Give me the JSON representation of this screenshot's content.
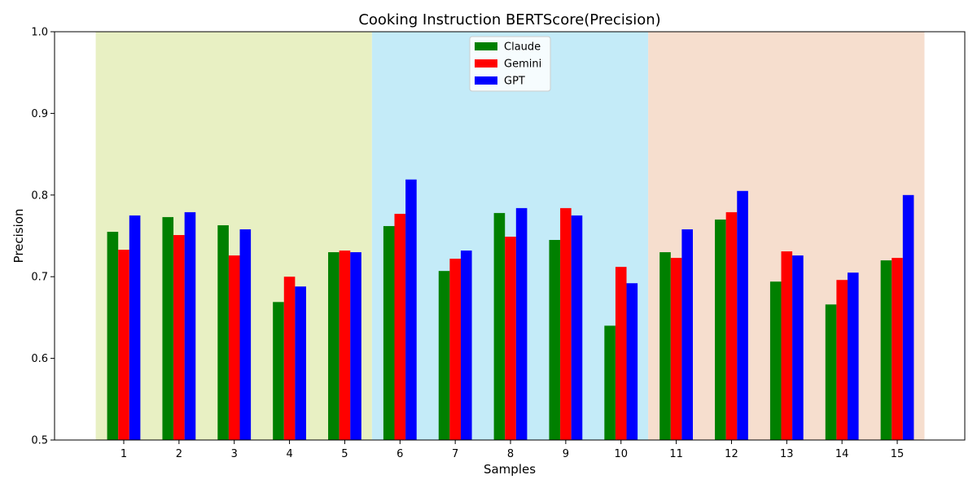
{
  "chart_data": {
    "type": "bar",
    "title": "Cooking Instruction BERTScore(Precision)",
    "xlabel": "Samples",
    "ylabel": "Precision",
    "ylim": [
      0.5,
      1.0
    ],
    "yticks": [
      "0.5",
      "0.6",
      "0.7",
      "0.8",
      "0.9",
      "1.0"
    ],
    "categories": [
      "1",
      "2",
      "3",
      "4",
      "5",
      "6",
      "7",
      "8",
      "9",
      "10",
      "11",
      "12",
      "13",
      "14",
      "15"
    ],
    "series": [
      {
        "name": "Claude",
        "color": "#008000",
        "values": [
          0.755,
          0.773,
          0.763,
          0.669,
          0.73,
          0.762,
          0.707,
          0.778,
          0.745,
          0.64,
          0.73,
          0.77,
          0.694,
          0.666,
          0.72
        ]
      },
      {
        "name": "Gemini",
        "color": "#ff0000",
        "values": [
          0.733,
          0.751,
          0.726,
          0.7,
          0.732,
          0.777,
          0.722,
          0.749,
          0.784,
          0.712,
          0.723,
          0.779,
          0.731,
          0.696,
          0.723
        ]
      },
      {
        "name": "GPT",
        "color": "#0000ff",
        "values": [
          0.775,
          0.779,
          0.758,
          0.688,
          0.73,
          0.819,
          0.732,
          0.784,
          0.775,
          0.692,
          0.758,
          0.805,
          0.726,
          0.705,
          0.8
        ]
      }
    ],
    "background_bands": [
      {
        "from_category": "1",
        "to_category": "5",
        "color": "#e8f0c3"
      },
      {
        "from_category": "6",
        "to_category": "10",
        "color": "#c4ebf8"
      },
      {
        "from_category": "11",
        "to_category": "15",
        "color": "#f6dece"
      }
    ],
    "legend_position": "top-center",
    "grid": false
  }
}
